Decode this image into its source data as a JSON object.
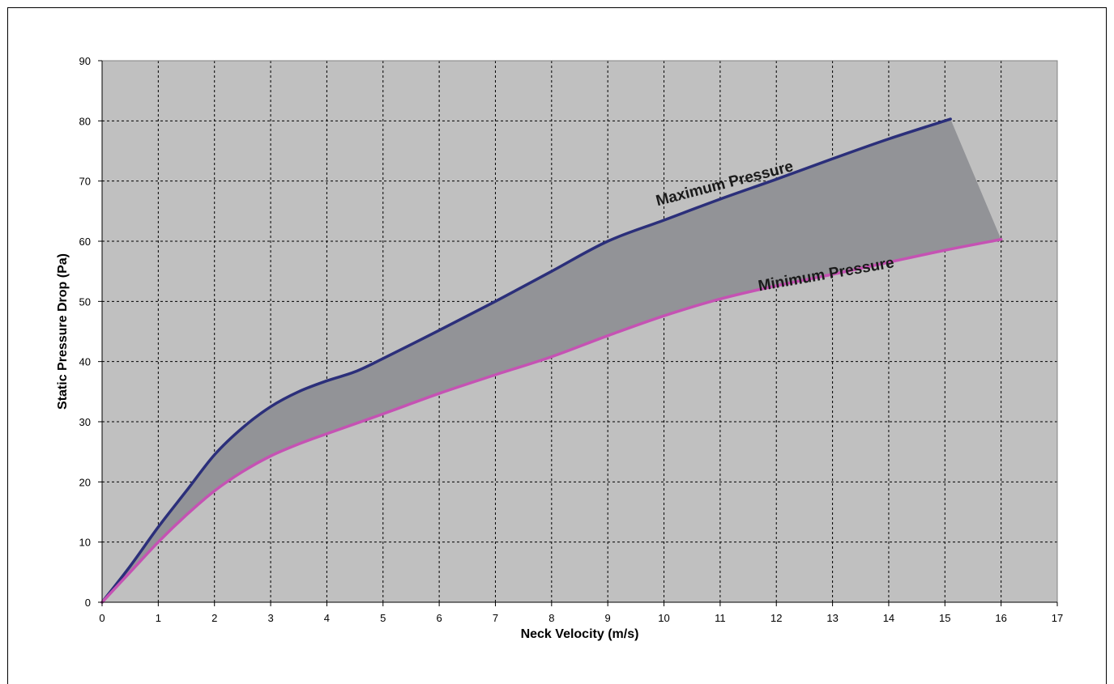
{
  "chart_data": {
    "type": "area",
    "title": "",
    "xlabel": "Neck Velocity (m/s)",
    "ylabel": "Static Pressure Drop (Pa)",
    "xlim": [
      0,
      17
    ],
    "ylim": [
      0,
      90
    ],
    "x_ticks": [
      0,
      1,
      2,
      3,
      4,
      5,
      6,
      7,
      8,
      9,
      10,
      11,
      12,
      13,
      14,
      15,
      16,
      17
    ],
    "y_ticks": [
      0,
      10,
      20,
      30,
      40,
      50,
      60,
      70,
      80,
      90
    ],
    "grid": true,
    "legend": "none",
    "series": [
      {
        "name": "Maximum Pressure",
        "color": "#2b2f7a",
        "x": [
          0,
          0.5,
          1,
          1.5,
          2,
          2.5,
          3,
          3.5,
          4,
          4.5,
          5,
          6,
          7,
          8,
          9,
          10,
          11,
          12,
          13,
          14,
          15.1
        ],
        "y": [
          0,
          6,
          12.5,
          18.5,
          24.5,
          29,
          32.5,
          35,
          36.8,
          38.3,
          40.5,
          45.2,
          50,
          55,
          60,
          63.5,
          67,
          70.3,
          73.7,
          77,
          80.3
        ]
      },
      {
        "name": "Minimum Pressure",
        "color": "#c552b3",
        "x": [
          0,
          0.5,
          1,
          1.5,
          2,
          2.5,
          3,
          3.5,
          4,
          5,
          6,
          7,
          8,
          9,
          10,
          11,
          12,
          13,
          14,
          15,
          16
        ],
        "y": [
          0,
          5,
          10,
          14.5,
          18.5,
          21.7,
          24.3,
          26.3,
          28,
          31.3,
          34.7,
          37.8,
          40.8,
          44.3,
          47.6,
          50.4,
          52.6,
          54.5,
          56.5,
          58.5,
          60.3
        ]
      }
    ],
    "band_fill": "#929397",
    "plot_background": "#c0c0c0",
    "annotations": [
      {
        "text": "Maximum Pressure",
        "x": 11.1,
        "y": 68.8,
        "angle": -14.5
      },
      {
        "text": "Minimum Pressure",
        "x": 12.9,
        "y": 53.7,
        "angle": -10
      }
    ]
  }
}
